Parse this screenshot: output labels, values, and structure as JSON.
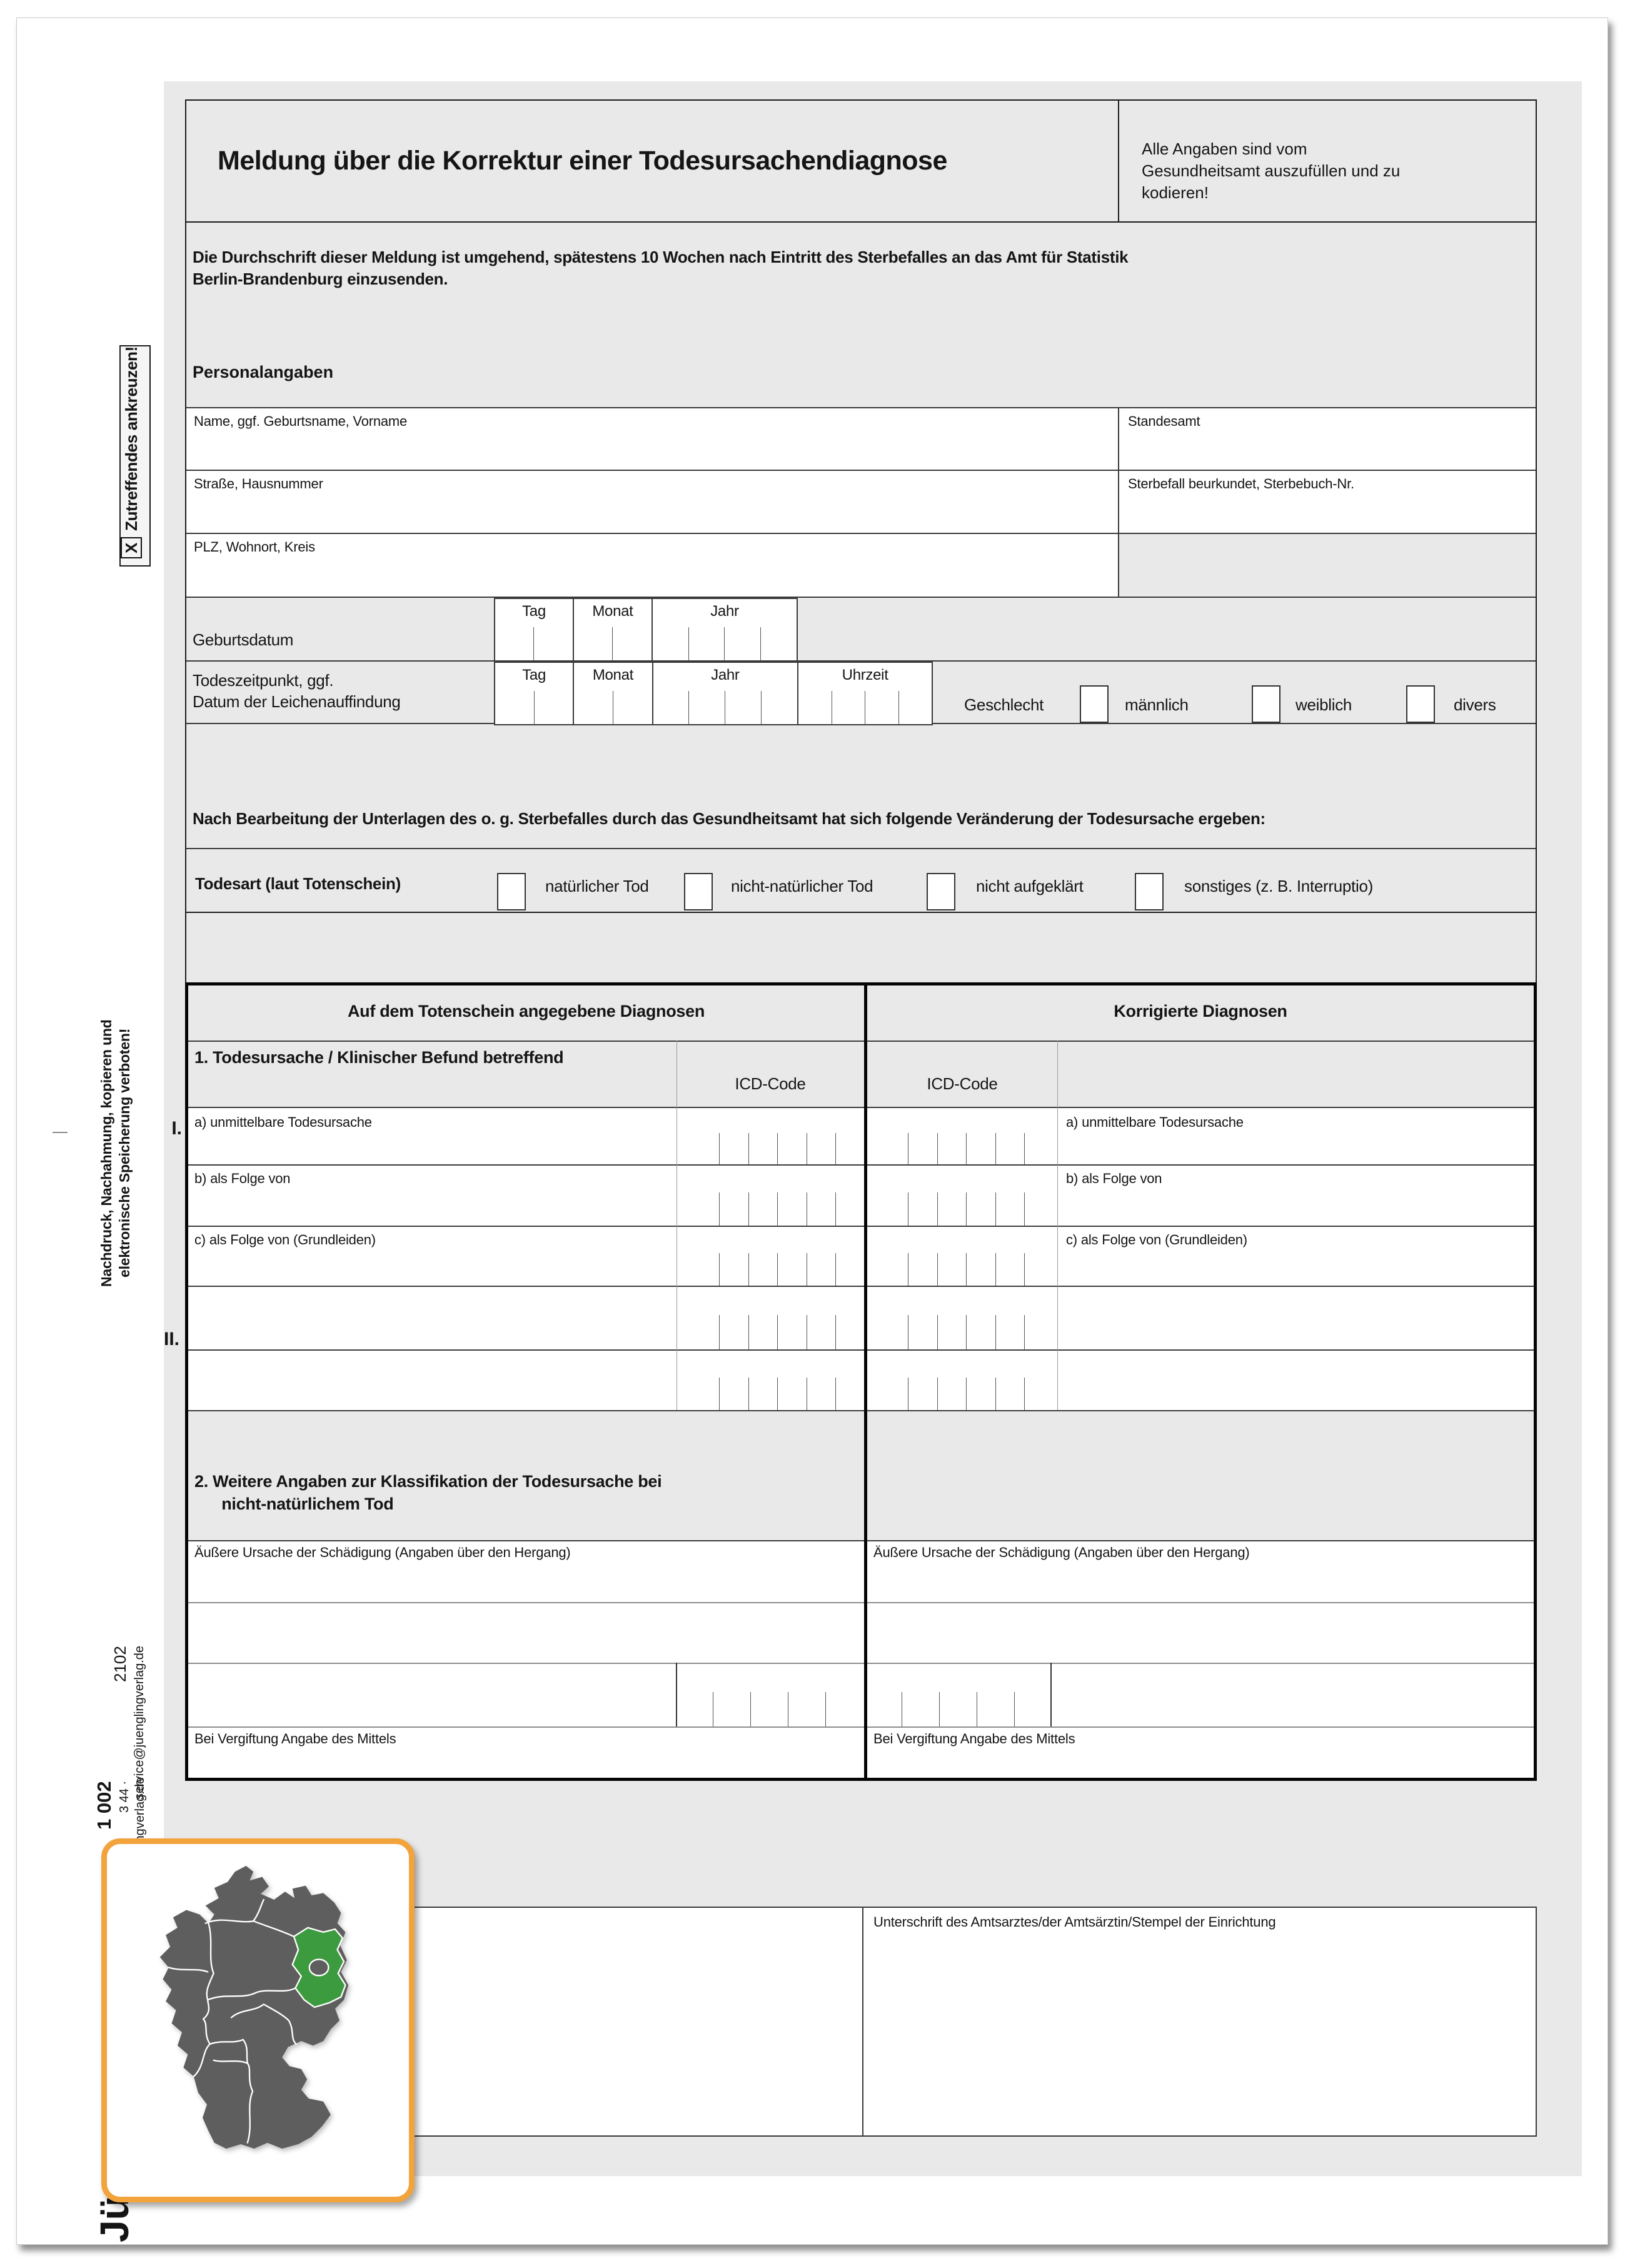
{
  "header": {
    "title": "Meldung über die Korrektur einer Todesursachendiagnose",
    "note": "Alle Angaben sind vom\nGesundheitsamt auszufüllen und zu\nkodieren!"
  },
  "intro": {
    "text": "Die Durchschrift dieser Meldung ist umgehend, spätestens 10 Wochen nach Eintritt des Sterbefalles an das Amt für Statistik\nBerlin-Brandenburg einzusenden.",
    "personal": "Personalangaben"
  },
  "fields": {
    "name": "Name, ggf. Geburtsname, Vorname",
    "standesamt": "Standesamt",
    "strasse": "Straße, Hausnummer",
    "sterbebuch": "Sterbefall beurkundet, Sterbebuch-Nr.",
    "plz": "PLZ, Wohnort, Kreis"
  },
  "dates": {
    "geburtsdatum": "Geburtsdatum",
    "todeszeitpunkt": "Todeszeitpunkt, ggf.\nDatum der Leichenauffindung",
    "tag": "Tag",
    "monat": "Monat",
    "jahr": "Jahr",
    "uhrzeit": "Uhrzeit"
  },
  "geschlecht": {
    "label": "Geschlecht",
    "m": "männlich",
    "w": "weiblich",
    "d": "divers"
  },
  "veraenderung": {
    "text": "Nach Bearbeitung der Unterlagen des o. g. Sterbefalles durch das Gesundheitsamt hat sich folgende Veränderung der Todesursache ergeben:"
  },
  "todesart": {
    "label": "Todesart (laut Totenschein)",
    "opt1": "natürlicher Tod",
    "opt2": "nicht-natürlicher Tod",
    "opt3": "nicht aufgeklärt",
    "opt4": "sonstiges (z. B. Interruptio)"
  },
  "diagnoses": {
    "left_header": "Auf dem Totenschein angegebene Diagnosen",
    "right_header": "Korrigierte Diagnosen",
    "sub": "1. Todesursache / Klinischer Befund betreffend",
    "icd": "ICD-Code",
    "row_a": "a) unmittelbare Todesursache",
    "row_b": "b) als Folge von",
    "row_c": "c) als Folge von (Grundleiden)",
    "roman1": "I.",
    "roman2": "II.",
    "sec2": "2. Weitere Angaben zur Klassifikation der Todesursache bei\n nicht-natürlichem Tod",
    "aeussere": "Äußere Ursache der Schädigung (Angaben über den Hergang)",
    "vergiftung": "Bei Vergiftung Angabe des Mittels"
  },
  "signature": {
    "label": "Unterschrift des Amtsarztes/der Amtsärztin/Stempel der Einrichtung"
  },
  "margin": {
    "ankreuzen": "Zutreffendes ankreuzen!",
    "x": "X",
    "nachdruck": "Nachdruck, Nachahmung, kopieren und\nelektronische Speicherung verboten!",
    "code": "2102",
    "email": "service@juenglingverlag.de",
    "formnr": "1 002",
    "order": "3 44 · service@juenglingverlag.de",
    "logo": "Jü"
  },
  "colors": {
    "accent_orange": "#F2A33C",
    "brandenburg_green": "#3C9A3F",
    "map_gray": "#5E5E5E",
    "form_gray": "#E9E9E9"
  }
}
